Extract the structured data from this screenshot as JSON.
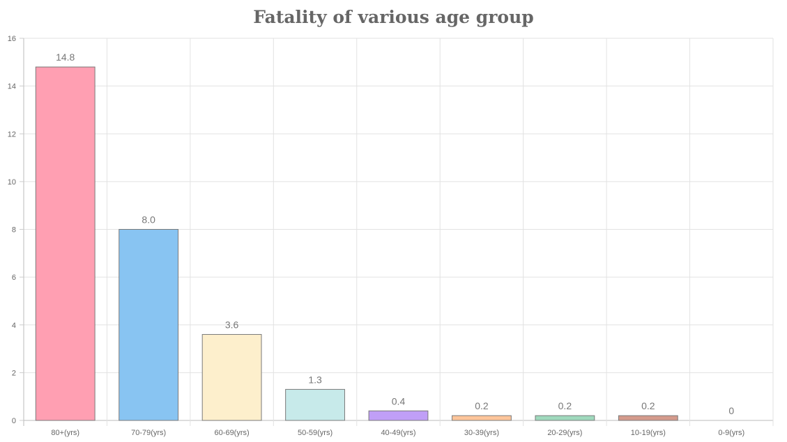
{
  "chart_data": {
    "type": "bar",
    "title": "Fatality of various age group",
    "xlabel": "",
    "ylabel": "",
    "categories": [
      "80+(yrs)",
      "70-79(yrs)",
      "60-69(yrs)",
      "50-59(yrs)",
      "40-49(yrs)",
      "30-39(yrs)",
      "20-29(yrs)",
      "10-19(yrs)",
      "0-9(yrs)"
    ],
    "values": [
      14.8,
      8.0,
      3.6,
      1.3,
      0.4,
      0.2,
      0.2,
      0.2,
      0
    ],
    "value_labels": [
      "14.8",
      "8.0",
      "3.6",
      "1.3",
      "0.4",
      "0.2",
      "0.2",
      "0.2",
      "0"
    ],
    "bar_colors": [
      "#ff9fb2",
      "#88c4f2",
      "#fdefcc",
      "#c7eaea",
      "#c09ff7",
      "#ffc59a",
      "#9fd9bd",
      "#d49a8c",
      "#cccccc"
    ],
    "ylim": [
      0,
      16
    ],
    "yticks": [
      "0",
      "2",
      "4",
      "6",
      "8",
      "10",
      "12",
      "14",
      "16"
    ],
    "grid": true,
    "legend": "none"
  }
}
